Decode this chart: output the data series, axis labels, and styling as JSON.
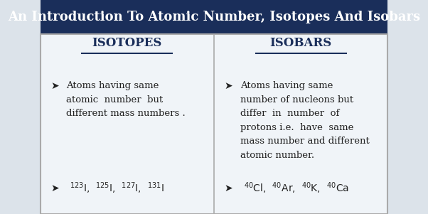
{
  "title": "An Introduction To Atomic Number, Isotopes And Isobars",
  "title_bg": "#1a2e5a",
  "title_color": "#ffffff",
  "title_fontsize": 13,
  "body_bg": "#f0f4f8",
  "col1_header": "ISOTOPES",
  "col2_header": "ISOBARS",
  "header_color": "#1a2e5a",
  "header_fontsize": 12,
  "col1_def": "Atoms having same\natomic  number  but\ndifferent mass numbers .",
  "col2_def": "Atoms having same\nnumber of nucleons but\ndiffer  in  number  of\nprotons i.e.  have  same\nmass number and different\natomic number.",
  "text_color": "#222222",
  "text_fontsize": 9.5,
  "divider_color": "#aaaaaa",
  "fig_bg": "#dce3ea",
  "arrow": "➤"
}
